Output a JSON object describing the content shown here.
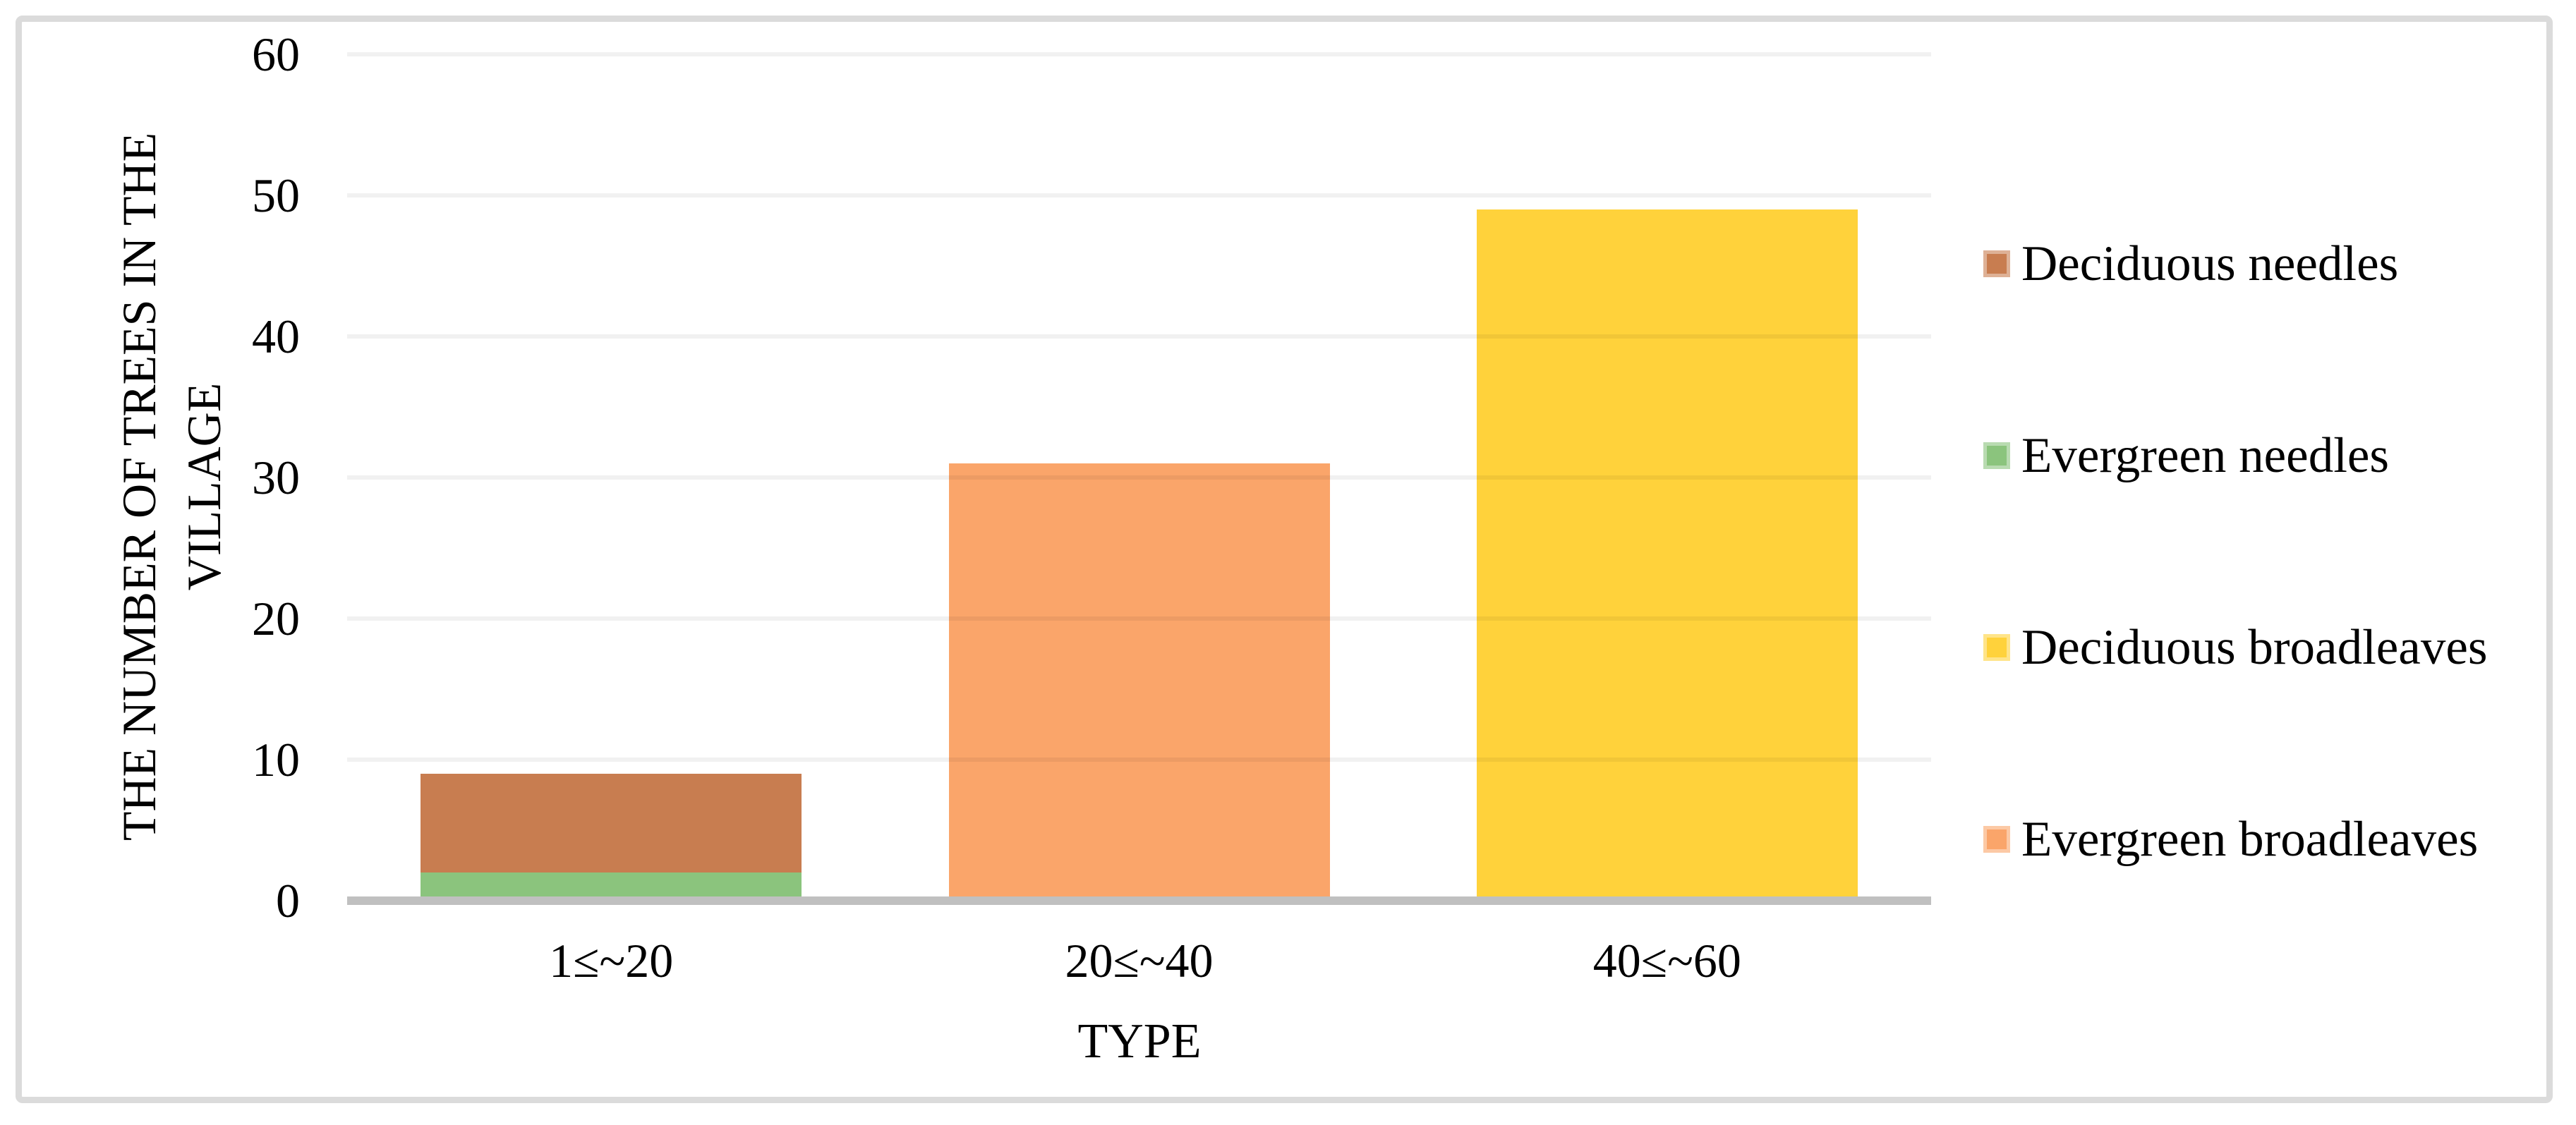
{
  "chart_data": {
    "type": "bar",
    "subtype": "stacked-column",
    "title": "",
    "xlabel": "TYPE",
    "ylabel": "THE NUMBER OF TREES IN THE VILLAGE",
    "ylabel_lines": [
      "THE NUMBER OF TREES IN THE",
      "VILLAGE"
    ],
    "categories": [
      "1≤~20",
      "20≤~40",
      "40≤~60"
    ],
    "ylim": [
      0,
      60
    ],
    "y_ticks": [
      0,
      10,
      20,
      30,
      40,
      50,
      60
    ],
    "grid": true,
    "legend_position": "right",
    "series": [
      {
        "name": "Deciduous needles",
        "color": "#C87D50",
        "values": [
          7,
          0,
          0
        ]
      },
      {
        "name": "Evergreen needles",
        "color": "#8BC47D",
        "values": [
          2,
          0,
          0
        ]
      },
      {
        "name": "Deciduous broadleaves",
        "color": "#FFD23B",
        "values": [
          0,
          0,
          49
        ]
      },
      {
        "name": "Evergreen broadleaves",
        "color": "#FAA56A",
        "values": [
          0,
          31,
          0
        ]
      }
    ],
    "stack_order_by_category": [
      [
        "Evergreen needles",
        "Deciduous needles"
      ],
      [
        "Evergreen broadleaves"
      ],
      [
        "Deciduous broadleaves"
      ]
    ],
    "bar_totals": [
      9,
      31,
      49
    ],
    "colors": {
      "axis_line": "#C0C0C0",
      "gridline": "#F2F2F2",
      "frame_border": "#DBDBDB",
      "background": "#FFFFFF"
    }
  }
}
